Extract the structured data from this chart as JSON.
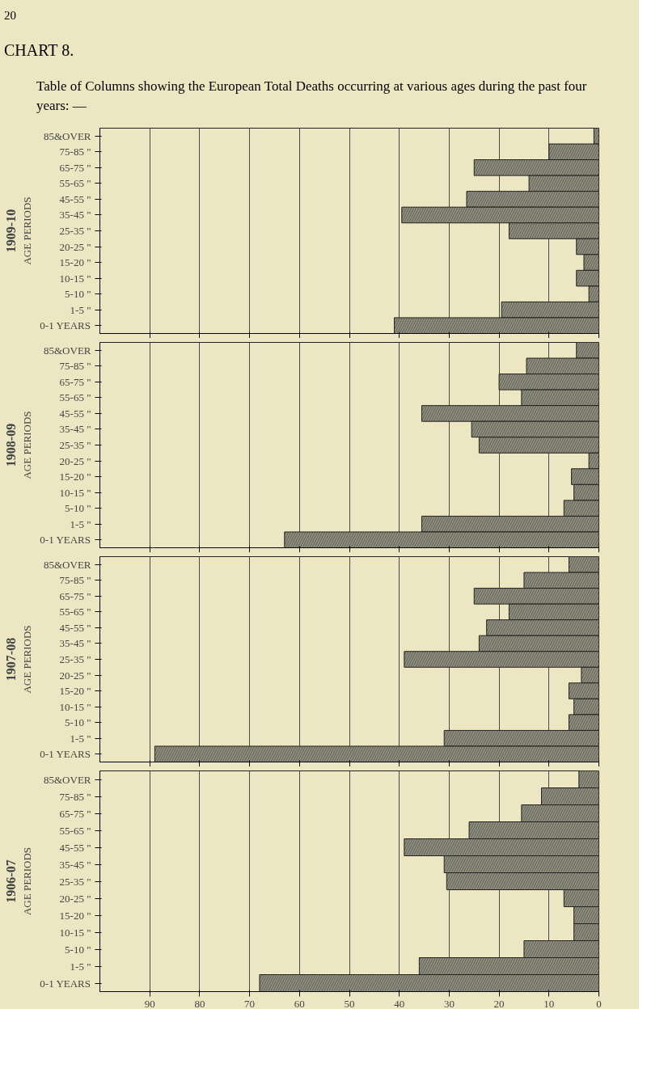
{
  "chart_data": [
    {
      "type": "bar",
      "orientation": "horizontal",
      "title": "1909-10",
      "ylabel": "AGE PERIODS",
      "annotations": [
        "20",
        "CHART 8.",
        "Table of Columns showing the European Total Deaths occurring at various ages during the past four years: —"
      ],
      "categories": [
        "85&OVER",
        "75-85 \"",
        "65-75 \"",
        "55-65 \"",
        "45-55 \"",
        "35-45 \"",
        "25-35 \"",
        "20-25 \"",
        "15-20 \"",
        "10-15 \"",
        "5-10 \"",
        "1-5 \"",
        "0-1 YEARS"
      ],
      "values": [
        1,
        10,
        25,
        14,
        26.5,
        39.5,
        18,
        4.5,
        3,
        4.5,
        2,
        19.5,
        41
      ],
      "color": "#8f8e7c",
      "xlim": [
        100,
        0
      ],
      "xticks": [
        90,
        80,
        70,
        60,
        50,
        40,
        30,
        20,
        10,
        0
      ],
      "grid": "x",
      "tick_labels": "y"
    },
    {
      "type": "bar",
      "orientation": "horizontal",
      "title": "1908-09",
      "ylabel": "AGE PERIODS",
      "categories": [
        "85&OVER",
        "75-85 \"",
        "65-75 \"",
        "55-65 \"",
        "45-55 \"",
        "35-45 \"",
        "25-35 \"",
        "20-25 \"",
        "15-20 \"",
        "10-15 \"",
        "5-10 \"",
        "1-5 \"",
        "0-1 YEARS"
      ],
      "values": [
        4.5,
        14.5,
        20,
        15.5,
        35.5,
        25.5,
        24,
        2,
        5.5,
        5,
        7,
        35.5,
        63
      ],
      "color": "#8f8e7c",
      "xlim": [
        100,
        0
      ],
      "xticks": [
        90,
        80,
        70,
        60,
        50,
        40,
        30,
        20,
        10,
        0
      ],
      "grid": "x",
      "tick_labels": "y"
    },
    {
      "type": "bar",
      "orientation": "horizontal",
      "title": "1907-08",
      "ylabel": "AGE PERIODS",
      "categories": [
        "85&OVER",
        "75-85 \"",
        "65-75 \"",
        "55-65 \"",
        "45-55 \"",
        "35-45 \"",
        "25-35 \"",
        "20-25 \"",
        "15-20 \"",
        "10-15 \"",
        "5-10 \"",
        "1-5 \"",
        "0-1 YEARS"
      ],
      "values": [
        6,
        15,
        25,
        18,
        22.5,
        24,
        39,
        3.5,
        6,
        5,
        6,
        31,
        89
      ],
      "color": "#8f8e7c",
      "xlim": [
        100,
        0
      ],
      "xticks": [
        90,
        80,
        70,
        60,
        50,
        40,
        30,
        20,
        10,
        0
      ],
      "grid": "x",
      "tick_labels": "y"
    },
    {
      "type": "bar",
      "orientation": "horizontal",
      "title": "1906-07",
      "ylabel": "AGE PERIODS",
      "categories": [
        "85&OVER",
        "75-85 \"",
        "65-75 \"",
        "55-65 \"",
        "45-55 \"",
        "35-45 \"",
        "25-35 \"",
        "20-25 \"",
        "15-20 \"",
        "10-15 \"",
        "5-10 \"",
        "1-5 \"",
        "0-1 YEARS"
      ],
      "values": [
        4,
        11.5,
        15.5,
        26,
        39,
        31,
        30.5,
        7,
        5,
        5,
        15,
        36,
        68
      ],
      "color": "#8f8e7c",
      "xlim": [
        100,
        0
      ],
      "xticks": [
        90,
        80,
        70,
        60,
        50,
        40,
        30,
        20,
        10,
        0
      ],
      "grid": "x"
    }
  ]
}
